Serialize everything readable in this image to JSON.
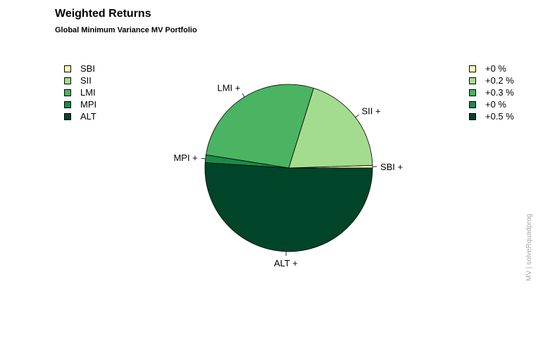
{
  "header": {
    "title": "Weighted Returns",
    "subtitle": "Global Minimum Variance MV Portfolio"
  },
  "side_note": "MV | solveRquadprog",
  "chart_data": {
    "type": "pie",
    "title": "Weighted Returns",
    "subtitle": "Global Minimum Variance MV Portfolio",
    "categories": [
      "SBI",
      "SII",
      "LMI",
      "MPI",
      "ALT"
    ],
    "slice_labels": [
      "SBI +",
      "SII +",
      "LMI +",
      "MPI +",
      "ALT +"
    ],
    "values": [
      0.5,
      19.7,
      27.3,
      1.5,
      51.0
    ],
    "colors": [
      "#f7fcb9",
      "#a4dc8f",
      "#4ab462",
      "#1e8a47",
      "#004529"
    ],
    "legend_left": {
      "placement": "top-left",
      "entries": [
        "SBI",
        "SII",
        "LMI",
        "MPI",
        "ALT"
      ]
    },
    "legend_right": {
      "placement": "top-right",
      "entries": [
        "+0 %",
        "+0.2 %",
        "+0.3 %",
        "+0 %",
        "+0.5 %"
      ]
    }
  }
}
